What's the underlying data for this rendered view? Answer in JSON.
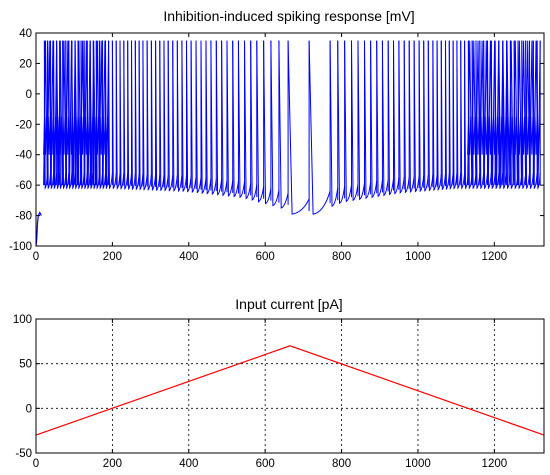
{
  "chart_data": [
    {
      "type": "line",
      "title": "Inhibition-induced spiking response [mV]",
      "xlabel": "",
      "ylabel": "",
      "xlim": [
        0,
        1330
      ],
      "ylim": [
        -100,
        40
      ],
      "xticks": [
        0,
        200,
        400,
        600,
        800,
        1000,
        1200
      ],
      "yticks": [
        -100,
        -80,
        -60,
        -40,
        -20,
        0,
        20,
        40
      ],
      "grid": false,
      "series": [
        {
          "color": "#0000ff",
          "spike_peak": 35,
          "reset_level": -60,
          "initial_transient": [
            [
              0,
              -100
            ],
            [
              2,
              -95
            ],
            [
              4,
              -85
            ],
            [
              6,
              -80
            ],
            [
              10,
              -78
            ],
            [
              14,
              -80
            ]
          ],
          "dense_regions": [
            [
              20,
              190,
              35
            ],
            [
              1130,
              1320,
              35
            ]
          ],
          "spike_times": [
            22,
            30,
            38,
            46,
            54,
            62,
            70,
            78,
            86,
            94,
            102,
            110,
            118,
            126,
            134,
            142,
            150,
            158,
            166,
            174,
            182,
            190,
            200,
            210,
            220,
            230,
            240,
            250,
            260,
            270,
            280,
            291,
            302,
            313,
            324,
            335,
            346,
            358,
            370,
            382,
            394,
            406,
            419,
            432,
            445,
            458,
            472,
            486,
            500,
            515,
            530,
            546,
            562,
            578,
            596,
            615,
            636,
            660,
            715,
            770,
            790,
            808,
            826,
            843,
            860,
            876,
            892,
            907,
            922,
            936,
            950,
            964,
            977,
            990,
            1003,
            1015,
            1027,
            1039,
            1050,
            1061,
            1072,
            1082,
            1092,
            1102,
            1112,
            1122,
            1132,
            1142,
            1152,
            1162,
            1172,
            1182,
            1192,
            1202,
            1212,
            1222,
            1232,
            1242,
            1252,
            1262,
            1272,
            1282,
            1292,
            1302,
            1312,
            1320
          ],
          "trough_levels": [
            [
              0,
              -60
            ],
            [
              200,
              -60
            ],
            [
              400,
              -62
            ],
            [
              550,
              -66
            ],
            [
              660,
              -73
            ],
            [
              715,
              -77
            ],
            [
              800,
              -69
            ],
            [
              950,
              -63
            ],
            [
              1100,
              -60
            ],
            [
              1330,
              -60
            ]
          ]
        }
      ]
    },
    {
      "type": "line",
      "title": "Input current [pA]",
      "xlabel": "",
      "ylabel": "",
      "xlim": [
        0,
        1330
      ],
      "ylim": [
        -50,
        100
      ],
      "xticks": [
        0,
        200,
        400,
        600,
        800,
        1000,
        1200
      ],
      "yticks": [
        -50,
        0,
        50,
        100
      ],
      "grid": true,
      "series": [
        {
          "color": "#ff0000",
          "x": [
            0,
            665,
            1330
          ],
          "y": [
            -30,
            70,
            -30
          ]
        }
      ]
    }
  ]
}
